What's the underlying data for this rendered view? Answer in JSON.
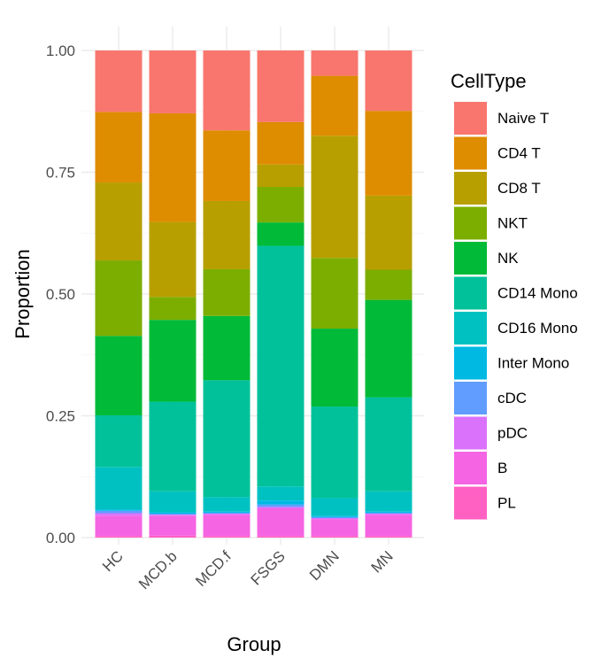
{
  "chart_data": {
    "type": "bar",
    "stacked": true,
    "xlabel": "Group",
    "ylabel": "Proportion",
    "ylim": [
      0,
      1
    ],
    "y_ticks": [
      "0.00",
      "0.25",
      "0.50",
      "0.75",
      "1.00"
    ],
    "y_tick_values": [
      0,
      0.25,
      0.5,
      0.75,
      1.0
    ],
    "grid": true,
    "legend_title": "CellType",
    "legend_position": "right",
    "categories": [
      "HC",
      "MCD.b",
      "MCD.f",
      "FSGS",
      "DMN",
      "MN"
    ],
    "series": [
      {
        "name": "PL",
        "color": "#FF61C3",
        "values": [
          0.003,
          0.004,
          0.003,
          0.003,
          0.003,
          0.003
        ]
      },
      {
        "name": "B",
        "color": "#F564E3",
        "values": [
          0.042,
          0.041,
          0.044,
          0.057,
          0.035,
          0.044
        ]
      },
      {
        "name": "pDC",
        "color": "#DB72FB",
        "values": [
          0.005,
          0.002,
          0.002,
          0.003,
          0.002,
          0.002
        ]
      },
      {
        "name": "cDC",
        "color": "#619CFF",
        "values": [
          0.005,
          0.002,
          0.002,
          0.005,
          0.002,
          0.002
        ]
      },
      {
        "name": "Inter Mono",
        "color": "#00B9E3",
        "values": [
          0.003,
          0.003,
          0.003,
          0.008,
          0.003,
          0.003
        ]
      },
      {
        "name": "CD16 Mono",
        "color": "#00C1C1",
        "values": [
          0.087,
          0.043,
          0.029,
          0.029,
          0.036,
          0.041
        ]
      },
      {
        "name": "CD14 Mono",
        "color": "#00C19A",
        "values": [
          0.106,
          0.184,
          0.24,
          0.494,
          0.188,
          0.193
        ]
      },
      {
        "name": "NK",
        "color": "#00BA38",
        "values": [
          0.163,
          0.168,
          0.132,
          0.048,
          0.16,
          0.2
        ]
      },
      {
        "name": "NKT",
        "color": "#7CAE00",
        "values": [
          0.155,
          0.047,
          0.096,
          0.073,
          0.145,
          0.062
        ]
      },
      {
        "name": "CD8 T",
        "color": "#B79F00",
        "values": [
          0.16,
          0.154,
          0.14,
          0.046,
          0.251,
          0.152
        ]
      },
      {
        "name": "CD4 T",
        "color": "#DE8C00",
        "values": [
          0.145,
          0.223,
          0.145,
          0.087,
          0.123,
          0.174
        ]
      },
      {
        "name": "Naive T",
        "color": "#F8766D",
        "values": [
          0.126,
          0.129,
          0.164,
          0.147,
          0.052,
          0.124
        ]
      }
    ],
    "legend_order": [
      "Naive T",
      "CD4 T",
      "CD8 T",
      "NKT",
      "NK",
      "CD14 Mono",
      "CD16 Mono",
      "Inter Mono",
      "cDC",
      "pDC",
      "B",
      "PL"
    ]
  }
}
